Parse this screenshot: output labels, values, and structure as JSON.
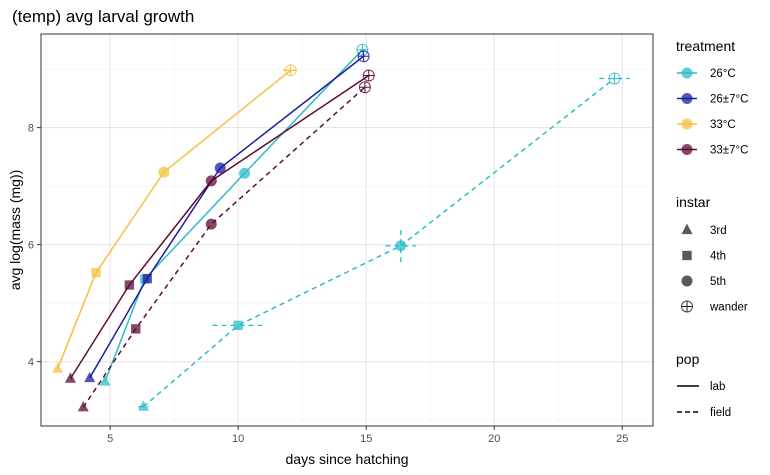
{
  "chart_data": {
    "type": "line",
    "title": "(temp) avg larval growth",
    "xlabel": "days since hatching",
    "ylabel": "avg log(mass (mg))",
    "xlim": [
      2.3,
      26.2
    ],
    "ylim": [
      2.9,
      9.6
    ],
    "xticks": [
      5,
      10,
      15,
      20,
      25
    ],
    "yticks": [
      4,
      6,
      8
    ],
    "grid": true,
    "legend_position": "right",
    "colors": {
      "26°C": "#2cbcc9",
      "26±7°C": "#1c1ca0",
      "33°C": "#f5c040",
      "33±7°C": "#5e0a36"
    },
    "legends": {
      "treatment": {
        "title": "treatment",
        "entries": [
          "26°C",
          "26±7°C",
          "33°C",
          "33±7°C"
        ]
      },
      "instar": {
        "title": "instar",
        "entries": [
          {
            "label": "3rd",
            "shape": "triangle"
          },
          {
            "label": "4th",
            "shape": "square"
          },
          {
            "label": "5th",
            "shape": "circle"
          },
          {
            "label": "wander",
            "shape": "circle-plus"
          }
        ]
      },
      "pop": {
        "title": "pop",
        "entries": [
          {
            "label": "lab",
            "linetype": "solid"
          },
          {
            "label": "field",
            "linetype": "dashed"
          }
        ]
      }
    },
    "series": [
      {
        "treatment": "26°C",
        "pop": "lab",
        "points": [
          {
            "x": 4.8,
            "y": 3.66,
            "instar": "3rd"
          },
          {
            "x": 6.35,
            "y": 5.41,
            "instar": "4th"
          },
          {
            "x": 10.25,
            "y": 7.22,
            "instar": "5th"
          },
          {
            "x": 14.85,
            "y": 9.33,
            "instar": "wander"
          }
        ]
      },
      {
        "treatment": "26°C",
        "pop": "field",
        "points": [
          {
            "x": 6.3,
            "y": 3.23,
            "instar": "3rd",
            "xerr": 0.2
          },
          {
            "x": 10.0,
            "y": 4.62,
            "instar": "4th",
            "xerr": 1.0,
            "yerr": 0.08
          },
          {
            "x": 16.35,
            "y": 5.98,
            "instar": "5th",
            "xerr": 0.6,
            "yerr": 0.28
          },
          {
            "x": 24.7,
            "y": 8.84,
            "instar": "wander",
            "xerr": 0.6
          }
        ]
      },
      {
        "treatment": "26±7°C",
        "pop": "lab",
        "points": [
          {
            "x": 4.2,
            "y": 3.72,
            "instar": "3rd"
          },
          {
            "x": 6.45,
            "y": 5.42,
            "instar": "4th"
          },
          {
            "x": 9.3,
            "y": 7.31,
            "instar": "5th"
          },
          {
            "x": 14.9,
            "y": 9.22,
            "instar": "wander"
          }
        ]
      },
      {
        "treatment": "33°C",
        "pop": "lab",
        "points": [
          {
            "x": 2.95,
            "y": 3.88,
            "instar": "3rd"
          },
          {
            "x": 4.45,
            "y": 5.52,
            "instar": "4th"
          },
          {
            "x": 7.1,
            "y": 7.24,
            "instar": "5th"
          },
          {
            "x": 12.05,
            "y": 8.98,
            "instar": "wander",
            "xerr": 0.3
          }
        ]
      },
      {
        "treatment": "33±7°C",
        "pop": "lab",
        "points": [
          {
            "x": 3.45,
            "y": 3.71,
            "instar": "3rd"
          },
          {
            "x": 5.75,
            "y": 5.31,
            "instar": "4th"
          },
          {
            "x": 8.95,
            "y": 7.09,
            "instar": "5th"
          },
          {
            "x": 15.1,
            "y": 8.89,
            "instar": "wander"
          }
        ]
      },
      {
        "treatment": "33±7°C",
        "pop": "field",
        "points": [
          {
            "x": 3.95,
            "y": 3.22,
            "instar": "3rd"
          },
          {
            "x": 6.0,
            "y": 4.56,
            "instar": "4th"
          },
          {
            "x": 8.95,
            "y": 6.35,
            "instar": "5th"
          },
          {
            "x": 14.95,
            "y": 8.69,
            "instar": "wander"
          }
        ]
      }
    ]
  }
}
